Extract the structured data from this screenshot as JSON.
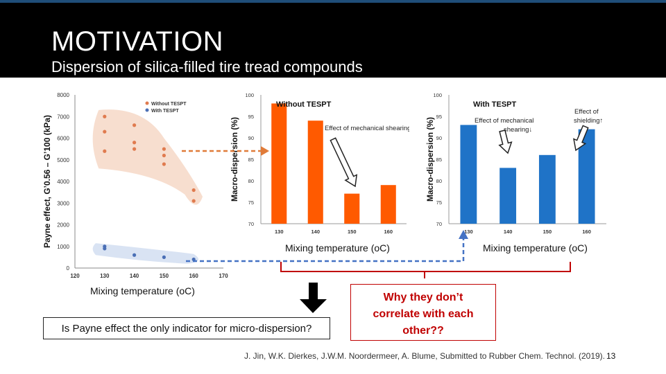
{
  "slide": {
    "title": "MOTIVATION",
    "subtitle": "Dispersion of silica-filled tire tread compounds",
    "question_box": "Is Payne effect the only indicator for micro-dispersion?",
    "why_box": [
      "Why they don’t",
      "correlate with each",
      "other??"
    ],
    "reference": "J. Jin, W.K. Dierkes, J.W.M. Noordermeer, A. Blume, Submitted to Rubber Chem. Technol. (2019).",
    "page_number": "13",
    "colors": {
      "header_bg": "#000000",
      "header_edge": "#1f4e79",
      "orange": "#ff5a00",
      "blue": "#1f73c7",
      "scatter_orange": "#e07b4f",
      "scatter_blue": "#4a6fb5",
      "annotation_red": "#c00000",
      "arrow_orange": "#e07b39",
      "arrow_blue": "#4472c4"
    }
  },
  "chart_data": [
    {
      "type": "scatter",
      "xlabel": "Mixing temperature (oC)",
      "ylabel": "Payne effect, G’0.56 – G’100 (kPa)",
      "xlim": [
        120,
        170
      ],
      "ylim": [
        0,
        8000
      ],
      "xticks": [
        "120",
        "130",
        "140",
        "150",
        "160",
        "170"
      ],
      "yticks": [
        "0",
        "1000",
        "2000",
        "3000",
        "4000",
        "5000",
        "6000",
        "7000",
        "8000"
      ],
      "legend": [
        "Without TESPT",
        "With TESPT"
      ],
      "legend_position": "top-left",
      "series": [
        {
          "name": "Without TESPT",
          "points": [
            [
              130,
              7000
            ],
            [
              130,
              6300
            ],
            [
              130,
              5400
            ],
            [
              140,
              6600
            ],
            [
              140,
              5800
            ],
            [
              140,
              5500
            ],
            [
              150,
              5500
            ],
            [
              150,
              5200
            ],
            [
              150,
              4800
            ],
            [
              160,
              3600
            ],
            [
              160,
              3100
            ]
          ]
        },
        {
          "name": "With TESPT",
          "points": [
            [
              130,
              1000
            ],
            [
              130,
              900
            ],
            [
              140,
              600
            ],
            [
              150,
              500
            ],
            [
              160,
              400
            ]
          ]
        }
      ]
    },
    {
      "type": "bar",
      "title": "Without TESPT",
      "xlabel": "Mixing temperature (oC)",
      "ylabel": "Macro-dispersion (%)",
      "categories": [
        "130",
        "140",
        "150",
        "160"
      ],
      "values": [
        98,
        94,
        77,
        79
      ],
      "ylim": [
        70,
        100
      ],
      "ytick_labels": [
        "70",
        "75",
        "80",
        "85",
        "90",
        "95",
        "100"
      ],
      "annotation": "Effect of mechanical shearing↓"
    },
    {
      "type": "bar",
      "title": "With TESPT",
      "xlabel": "Mixing temperature (oC)",
      "ylabel": "Macro-dispersion (%)",
      "categories": [
        "130",
        "140",
        "150",
        "160"
      ],
      "values": [
        93,
        83,
        86,
        92
      ],
      "ylim": [
        70,
        100
      ],
      "ytick_labels": [
        "70",
        "75",
        "80",
        "85",
        "90",
        "95",
        "100"
      ],
      "annotations": [
        "Effect of mechanical shearing↓",
        "Effect of shielding↑"
      ]
    }
  ]
}
